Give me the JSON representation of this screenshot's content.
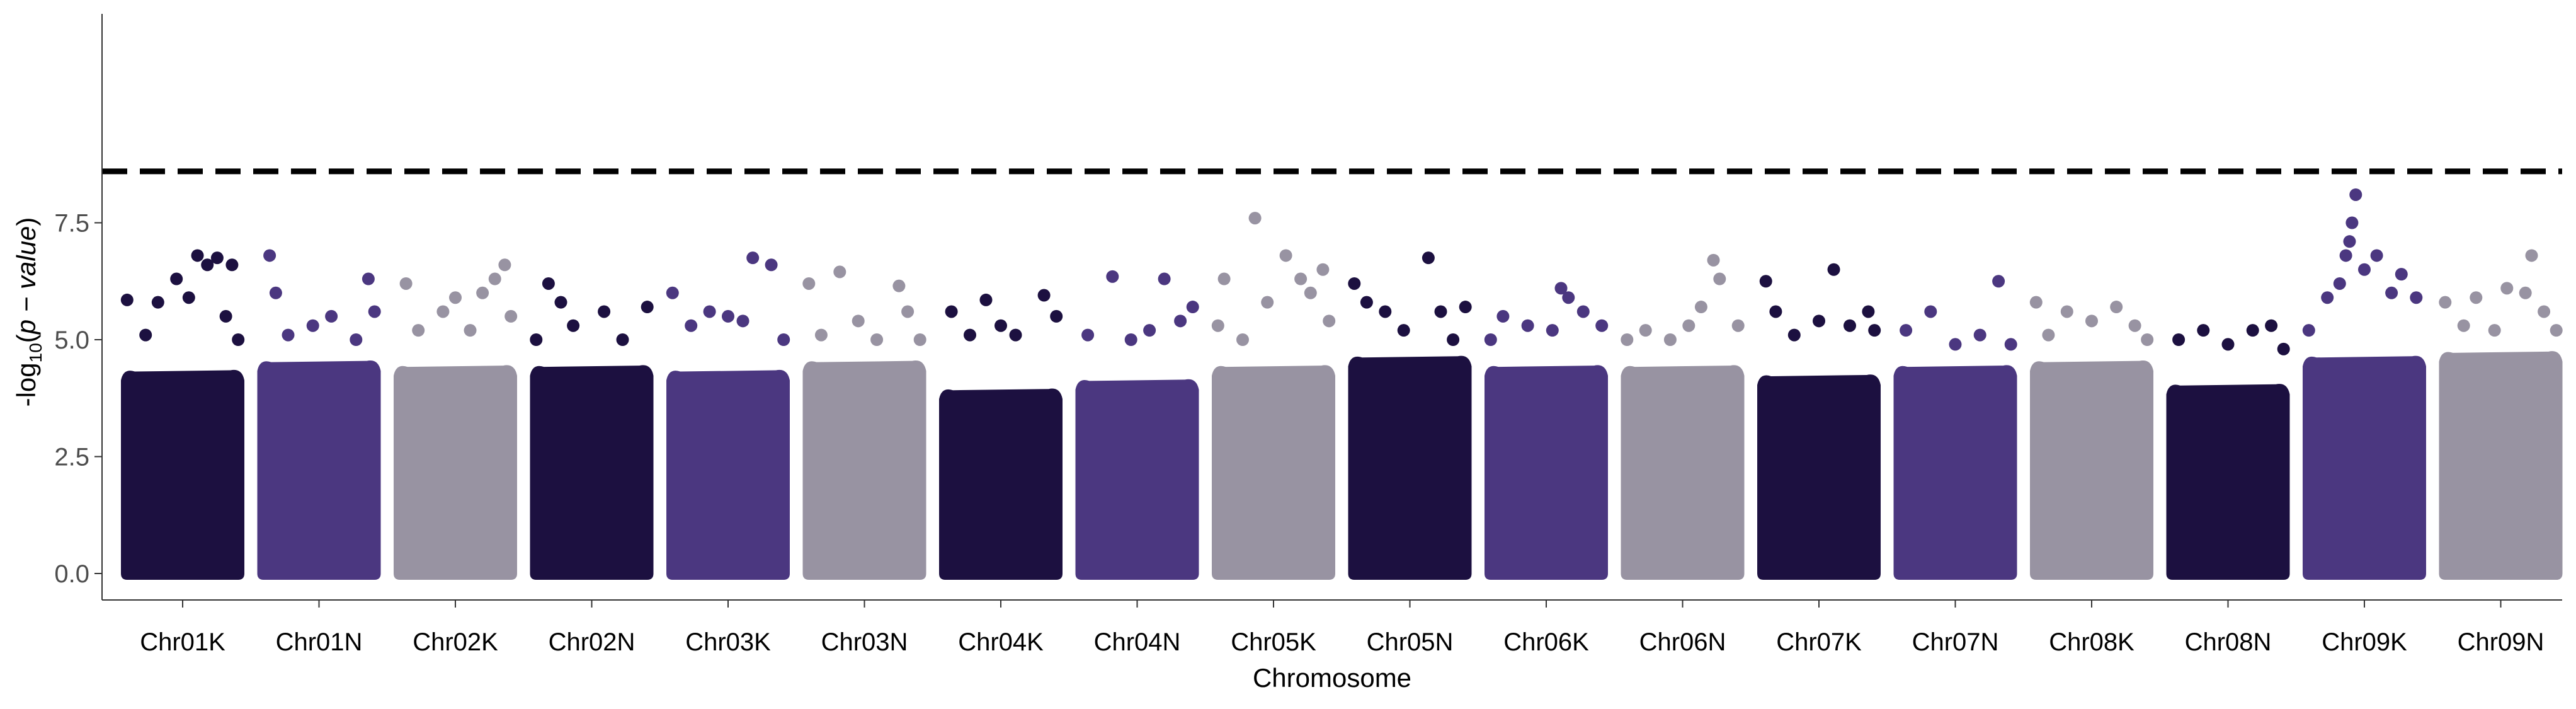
{
  "chart_data": {
    "type": "scatter",
    "subtype": "manhattan",
    "title": "",
    "xlabel": "Chromosome",
    "ylabel": {
      "prefix": "-log",
      "sub": "10",
      "mid": "(",
      "italic": "p − value",
      "suffix": ")"
    },
    "ylim": [
      0,
      8.6
    ],
    "yticks": [
      0.0,
      2.5,
      5.0,
      7.5
    ],
    "ytick_labels": [
      "0.0",
      "2.5",
      "5.0",
      "7.5"
    ],
    "threshold": 8.6,
    "threshold_style": "dashed",
    "grid": false,
    "legend": "none",
    "colors": [
      "#1c1040",
      "#4b3780",
      "#9893a2"
    ],
    "categories": [
      "Chr01K",
      "Chr01N",
      "Chr02K",
      "Chr02N",
      "Chr03K",
      "Chr03N",
      "Chr04K",
      "Chr04N",
      "Chr05K",
      "Chr05N",
      "Chr06K",
      "Chr06N",
      "Chr07K",
      "Chr07N",
      "Chr08K",
      "Chr08N",
      "Chr09K",
      "Chr09N"
    ],
    "band_top": [
      4.4,
      4.6,
      4.5,
      4.5,
      4.4,
      4.6,
      4.0,
      4.2,
      4.5,
      4.7,
      4.5,
      4.5,
      4.3,
      4.5,
      4.6,
      4.1,
      4.7,
      4.8
    ],
    "peaks": [
      [
        0.05,
        5.85
      ],
      [
        0.2,
        5.1
      ],
      [
        0.3,
        5.8
      ],
      [
        0.45,
        6.3
      ],
      [
        0.55,
        5.9
      ],
      [
        0.62,
        6.8
      ],
      [
        0.7,
        6.6
      ],
      [
        0.78,
        6.75
      ],
      [
        0.85,
        5.5
      ],
      [
        0.9,
        6.6
      ],
      [
        0.95,
        5.0
      ],
      [
        1.1,
        6.8
      ],
      [
        1.15,
        6.0
      ],
      [
        1.25,
        5.1
      ],
      [
        1.45,
        5.3
      ],
      [
        1.6,
        5.5
      ],
      [
        1.8,
        5.0
      ],
      [
        1.9,
        6.3
      ],
      [
        1.95,
        5.6
      ],
      [
        2.1,
        6.2
      ],
      [
        2.2,
        5.2
      ],
      [
        2.4,
        5.6
      ],
      [
        2.5,
        5.9
      ],
      [
        2.62,
        5.2
      ],
      [
        2.72,
        6.0
      ],
      [
        2.82,
        6.3
      ],
      [
        2.9,
        6.6
      ],
      [
        2.95,
        5.5
      ],
      [
        3.05,
        5.0
      ],
      [
        3.15,
        6.2
      ],
      [
        3.25,
        5.8
      ],
      [
        3.35,
        5.3
      ],
      [
        3.6,
        5.6
      ],
      [
        3.75,
        5.0
      ],
      [
        3.95,
        5.7
      ],
      [
        4.05,
        6.0
      ],
      [
        4.2,
        5.3
      ],
      [
        4.35,
        5.6
      ],
      [
        4.5,
        5.5
      ],
      [
        4.62,
        5.4
      ],
      [
        4.7,
        6.75
      ],
      [
        4.85,
        6.6
      ],
      [
        4.95,
        5.0
      ],
      [
        5.05,
        6.2
      ],
      [
        5.15,
        5.1
      ],
      [
        5.3,
        6.45
      ],
      [
        5.45,
        5.4
      ],
      [
        5.6,
        5.0
      ],
      [
        5.78,
        6.15
      ],
      [
        5.85,
        5.6
      ],
      [
        5.95,
        5.0
      ],
      [
        6.1,
        5.6
      ],
      [
        6.25,
        5.1
      ],
      [
        6.38,
        5.85
      ],
      [
        6.5,
        5.3
      ],
      [
        6.62,
        5.1
      ],
      [
        6.85,
        5.95
      ],
      [
        6.95,
        5.5
      ],
      [
        7.1,
        5.1
      ],
      [
        7.3,
        6.35
      ],
      [
        7.45,
        5.0
      ],
      [
        7.6,
        5.2
      ],
      [
        7.72,
        6.3
      ],
      [
        7.85,
        5.4
      ],
      [
        7.95,
        5.7
      ],
      [
        8.05,
        5.3
      ],
      [
        8.1,
        6.3
      ],
      [
        8.25,
        5.0
      ],
      [
        8.35,
        7.6
      ],
      [
        8.45,
        5.8
      ],
      [
        8.6,
        6.8
      ],
      [
        8.72,
        6.3
      ],
      [
        8.8,
        6.0
      ],
      [
        8.9,
        6.5
      ],
      [
        8.95,
        5.4
      ],
      [
        9.05,
        6.2
      ],
      [
        9.15,
        5.8
      ],
      [
        9.3,
        5.6
      ],
      [
        9.45,
        5.2
      ],
      [
        9.65,
        6.75
      ],
      [
        9.75,
        5.6
      ],
      [
        9.85,
        5.0
      ],
      [
        9.95,
        5.7
      ],
      [
        10.05,
        5.0
      ],
      [
        10.15,
        5.5
      ],
      [
        10.35,
        5.3
      ],
      [
        10.55,
        5.2
      ],
      [
        10.62,
        6.1
      ],
      [
        10.68,
        5.9
      ],
      [
        10.8,
        5.6
      ],
      [
        10.95,
        5.3
      ],
      [
        11.05,
        5.0
      ],
      [
        11.2,
        5.2
      ],
      [
        11.4,
        5.0
      ],
      [
        11.55,
        5.3
      ],
      [
        11.65,
        5.7
      ],
      [
        11.75,
        6.7
      ],
      [
        11.8,
        6.3
      ],
      [
        11.95,
        5.3
      ],
      [
        12.07,
        6.25
      ],
      [
        12.15,
        5.6
      ],
      [
        12.3,
        5.1
      ],
      [
        12.5,
        5.4
      ],
      [
        12.62,
        6.5
      ],
      [
        12.75,
        5.3
      ],
      [
        12.9,
        5.6
      ],
      [
        12.95,
        5.2
      ],
      [
        13.1,
        5.2
      ],
      [
        13.3,
        5.6
      ],
      [
        13.5,
        4.9
      ],
      [
        13.7,
        5.1
      ],
      [
        13.85,
        6.25
      ],
      [
        13.95,
        4.9
      ],
      [
        14.05,
        5.8
      ],
      [
        14.15,
        5.1
      ],
      [
        14.3,
        5.6
      ],
      [
        14.5,
        5.4
      ],
      [
        14.7,
        5.7
      ],
      [
        14.85,
        5.3
      ],
      [
        14.95,
        5.0
      ],
      [
        15.1,
        5.0
      ],
      [
        15.3,
        5.2
      ],
      [
        15.5,
        4.9
      ],
      [
        15.7,
        5.2
      ],
      [
        15.85,
        5.3
      ],
      [
        15.95,
        4.8
      ],
      [
        16.05,
        5.2
      ],
      [
        16.2,
        5.9
      ],
      [
        16.3,
        6.2
      ],
      [
        16.35,
        6.8
      ],
      [
        16.38,
        7.1
      ],
      [
        16.4,
        7.5
      ],
      [
        16.43,
        8.1
      ],
      [
        16.5,
        6.5
      ],
      [
        16.6,
        6.8
      ],
      [
        16.72,
        6.0
      ],
      [
        16.8,
        6.4
      ],
      [
        16.92,
        5.9
      ],
      [
        17.05,
        5.8
      ],
      [
        17.2,
        5.3
      ],
      [
        17.3,
        5.9
      ],
      [
        17.45,
        5.2
      ],
      [
        17.55,
        6.1
      ],
      [
        17.7,
        6.0
      ],
      [
        17.75,
        6.8
      ],
      [
        17.85,
        5.6
      ],
      [
        17.95,
        5.2
      ]
    ]
  }
}
